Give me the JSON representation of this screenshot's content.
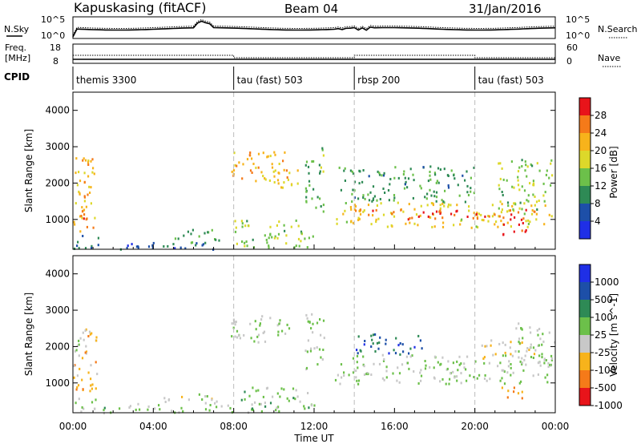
{
  "header": {
    "station": "Kapuskasing (fitACF)",
    "beam": "Beam 04",
    "date": "31/Jan/2016"
  },
  "top_panels": {
    "nsky_label": "N.Sky",
    "nsky_ticks": [
      "10^5",
      "10^0"
    ],
    "nsearch_label": "N.Search",
    "nsearch_ticks": [
      "10^5",
      "10^0"
    ],
    "freq_label_1": "Freq.",
    "freq_label_2": "[MHz]",
    "freq_ticks": [
      "18",
      "8"
    ],
    "nave_label": "Nave",
    "nave_ticks": [
      "60",
      "0"
    ],
    "cpid_label": "CPID"
  },
  "cpid_segments": [
    {
      "start_hour": 0,
      "end_hour": 8,
      "label": "themis 3300"
    },
    {
      "start_hour": 8,
      "end_hour": 14,
      "label": "tau (fast) 503"
    },
    {
      "start_hour": 14,
      "end_hour": 20,
      "label": "rbsp 200"
    },
    {
      "start_hour": 20,
      "end_hour": 24,
      "label": "tau (fast) 503"
    }
  ],
  "axes": {
    "ylabel": "Slant Range [km]",
    "xlabel": "Time UT",
    "yticks": [
      "1000",
      "2000",
      "3000",
      "4000"
    ],
    "xticks": [
      "00:00",
      "04:00",
      "08:00",
      "12:00",
      "16:00",
      "20:00",
      "00:00"
    ]
  },
  "chart_data": [
    {
      "type": "heatmap",
      "title": "",
      "xlabel": "Time UT",
      "ylabel": "Slant Range [km]",
      "x_range_hours": [
        0,
        24
      ],
      "ylim_km": [
        180,
        4500
      ],
      "colorbar": {
        "label": "Power [dB]",
        "ticks": [
          "28",
          "24",
          "20",
          "16",
          "12",
          "8",
          "4"
        ],
        "colors": [
          "#e8141a",
          "#f57a19",
          "#f7b31b",
          "#ddd82a",
          "#6cc04a",
          "#2e8a55",
          "#1d4fa8",
          "#1f2fe6"
        ],
        "range": [
          0,
          30
        ]
      },
      "regions": [
        {
          "t0": 0.0,
          "t1": 1.1,
          "r0": 700,
          "r1": 2800,
          "value": 20
        },
        {
          "t0": 0.3,
          "t1": 1.0,
          "r0": 800,
          "r1": 1300,
          "value": 26
        },
        {
          "t0": 0.5,
          "t1": 1.0,
          "r0": 1500,
          "r1": 2100,
          "value": 22
        },
        {
          "t0": 0.0,
          "t1": 1.3,
          "r0": 200,
          "r1": 600,
          "value": 8
        },
        {
          "t0": 1.2,
          "t1": 8.0,
          "r0": 200,
          "r1": 400,
          "value": 6
        },
        {
          "t0": 5.0,
          "t1": 7.3,
          "r0": 350,
          "r1": 800,
          "value": 12
        },
        {
          "t0": 7.8,
          "t1": 10.8,
          "r0": 2100,
          "r1": 2900,
          "value": 21
        },
        {
          "t0": 9.0,
          "t1": 11.2,
          "r0": 1900,
          "r1": 2400,
          "value": 18
        },
        {
          "t0": 8.0,
          "t1": 12.0,
          "r0": 200,
          "r1": 1000,
          "value": 14
        },
        {
          "t0": 11.5,
          "t1": 12.5,
          "r0": 1200,
          "r1": 3000,
          "value": 12
        },
        {
          "t0": 13.0,
          "t1": 23.8,
          "r0": 800,
          "r1": 1500,
          "value": 18
        },
        {
          "t0": 14.0,
          "t1": 23.0,
          "r0": 1000,
          "r1": 1300,
          "value": 26
        },
        {
          "t0": 13.0,
          "t1": 20.0,
          "r0": 1500,
          "r1": 2500,
          "value": 10
        },
        {
          "t0": 21.0,
          "t1": 23.8,
          "r0": 1300,
          "r1": 2700,
          "value": 14
        },
        {
          "t0": 21.3,
          "t1": 22.8,
          "r0": 600,
          "r1": 950,
          "value": 26
        }
      ]
    },
    {
      "type": "heatmap",
      "title": "",
      "xlabel": "Time UT",
      "ylabel": "Slant Range [km]",
      "x_range_hours": [
        0,
        24
      ],
      "ylim_km": [
        180,
        4500
      ],
      "colorbar": {
        "label": "Velocity [m s^-1]",
        "ticks": [
          "1000",
          "500",
          "100",
          "25",
          "-25",
          "-100",
          "-500",
          "-1000"
        ],
        "colors": [
          "#1f2fe6",
          "#1d4fa8",
          "#2e8a55",
          "#6cc04a",
          "#c8c8c8",
          "#f7b31b",
          "#f57a19",
          "#e8141a"
        ],
        "range": [
          -1200,
          1200
        ]
      },
      "regions": [
        {
          "t0": 0.0,
          "t1": 1.2,
          "r0": 700,
          "r1": 2600,
          "value": -400
        },
        {
          "t0": 0.0,
          "t1": 0.6,
          "r0": 1800,
          "r1": 2500,
          "value": 0
        },
        {
          "t0": 0.0,
          "t1": 1.3,
          "r0": 200,
          "r1": 600,
          "value": -60
        },
        {
          "t0": 1.2,
          "t1": 8.0,
          "r0": 200,
          "r1": 450,
          "value": 60
        },
        {
          "t0": 4.5,
          "t1": 7.5,
          "r0": 450,
          "r1": 750,
          "value": -120
        },
        {
          "t0": 7.8,
          "t1": 10.8,
          "r0": 2100,
          "r1": 2900,
          "value": 0
        },
        {
          "t0": 8.0,
          "t1": 12.0,
          "r0": 200,
          "r1": 900,
          "value": 80
        },
        {
          "t0": 11.5,
          "t1": 12.5,
          "r0": 1300,
          "r1": 3000,
          "value": 0
        },
        {
          "t0": 13.0,
          "t1": 23.8,
          "r0": 1000,
          "r1": 1800,
          "value": 0
        },
        {
          "t0": 14.0,
          "t1": 17.5,
          "r0": 1800,
          "r1": 2400,
          "value": 700
        },
        {
          "t0": 20.0,
          "t1": 23.0,
          "r0": 1700,
          "r1": 2200,
          "value": -300
        },
        {
          "t0": 21.3,
          "t1": 22.8,
          "r0": 600,
          "r1": 900,
          "value": -600
        },
        {
          "t0": 22.0,
          "t1": 24.0,
          "r0": 1400,
          "r1": 2700,
          "value": 0
        }
      ]
    }
  ]
}
